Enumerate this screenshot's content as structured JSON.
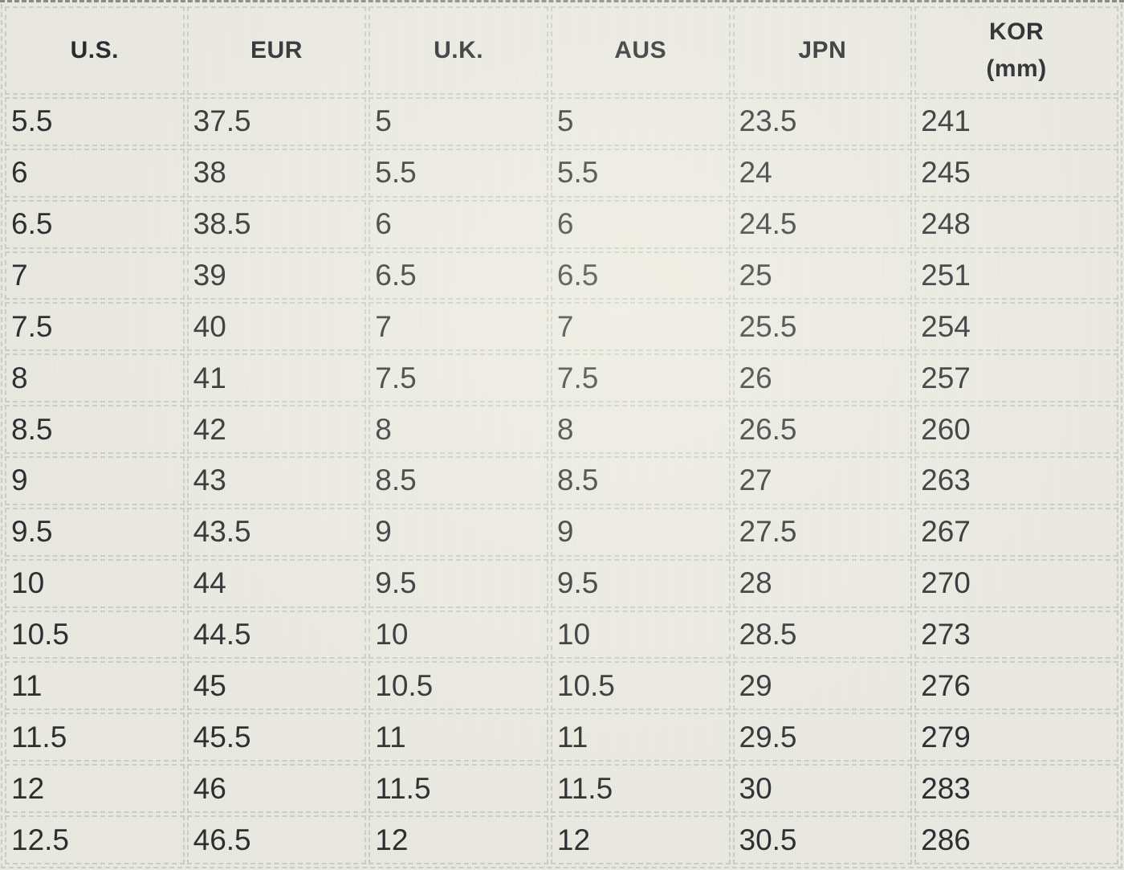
{
  "chart_data": {
    "type": "table",
    "columns": [
      {
        "label": "U.S."
      },
      {
        "label": "EUR"
      },
      {
        "label": "U.K."
      },
      {
        "label": "AUS"
      },
      {
        "label": "JPN"
      },
      {
        "label": "KOR",
        "sublabel": "(mm)"
      }
    ],
    "rows": [
      [
        "5.5",
        "37.5",
        "5",
        "5",
        "23.5",
        "241"
      ],
      [
        "6",
        "38",
        "5.5",
        "5.5",
        "24",
        "245"
      ],
      [
        "6.5",
        "38.5",
        "6",
        "6",
        "24.5",
        "248"
      ],
      [
        "7",
        "39",
        "6.5",
        "6.5",
        "25",
        "251"
      ],
      [
        "7.5",
        "40",
        "7",
        "7",
        "25.5",
        "254"
      ],
      [
        "8",
        "41",
        "7.5",
        "7.5",
        "26",
        "257"
      ],
      [
        "8.5",
        "42",
        "8",
        "8",
        "26.5",
        "260"
      ],
      [
        "9",
        "43",
        "8.5",
        "8.5",
        "27",
        "263"
      ],
      [
        "9.5",
        "43.5",
        "9",
        "9",
        "27.5",
        "267"
      ],
      [
        "10",
        "44",
        "9.5",
        "9.5",
        "28",
        "270"
      ],
      [
        "10.5",
        "44.5",
        "10",
        "10",
        "28.5",
        "273"
      ],
      [
        "11",
        "45",
        "10.5",
        "10.5",
        "29",
        "276"
      ],
      [
        "11.5",
        "45.5",
        "11",
        "11",
        "29.5",
        "279"
      ],
      [
        "12",
        "46",
        "11.5",
        "11.5",
        "30",
        "283"
      ],
      [
        "12.5",
        "46.5",
        "12",
        "12",
        "30.5",
        "286"
      ]
    ],
    "grid": "dashed",
    "legend_position": "none"
  },
  "colors": {
    "background": "#e9e9e1",
    "grid_line": "#cbccc3",
    "grid_line_dark": "#8a8a84",
    "text": "#2b2b2f"
  }
}
